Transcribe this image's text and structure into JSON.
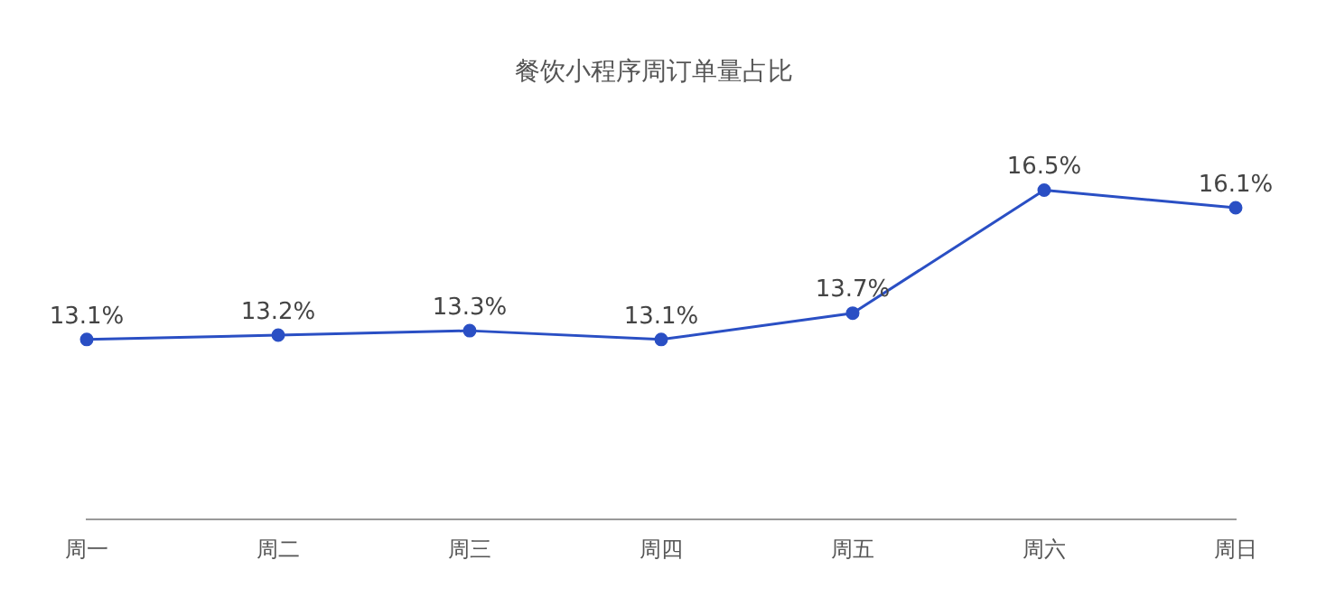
{
  "chart_data": {
    "type": "line",
    "title": "餐饮小程序周订单量占比",
    "categories": [
      "周一",
      "周二",
      "周三",
      "周四",
      "周五",
      "周六",
      "周日"
    ],
    "series": [
      {
        "color": "#2a4fc4",
        "values": [
          13.1,
          13.2,
          13.3,
          13.1,
          13.7,
          16.5,
          16.1
        ],
        "value_labels": [
          "13.1%",
          "13.2%",
          "13.3%",
          "13.1%",
          "13.7%",
          "16.5%",
          "16.1%"
        ]
      }
    ],
    "tick_labels": "x",
    "grid": false,
    "legend": false,
    "marker": "circle",
    "line_style": "solid"
  }
}
